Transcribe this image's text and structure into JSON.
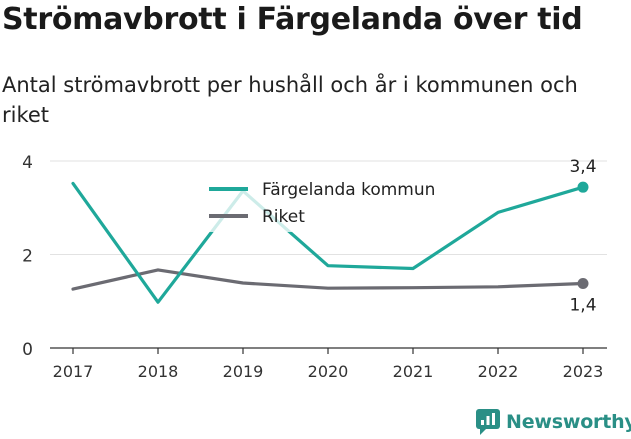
{
  "title": "Strömavbrott i Färgelanda över tid",
  "subtitle": "Antal strömavbrott per hushåll och år i kommunen och riket",
  "brand": {
    "name": "Newsworthy",
    "icon": "newsworthy-logo-icon"
  },
  "colors": {
    "fargelanda": "#1fa89a",
    "riket": "#6b6b72",
    "grid": "#e2e2e2",
    "axis": "#333333"
  },
  "chart_data": {
    "type": "line",
    "title": "Strömavbrott i Färgelanda över tid",
    "subtitle": "Antal strömavbrott per hushåll och år i kommunen och riket",
    "categories": [
      "2017",
      "2018",
      "2019",
      "2020",
      "2021",
      "2022",
      "2023"
    ],
    "y_ticks": [
      "0",
      "2",
      "4"
    ],
    "ylim": [
      0,
      4
    ],
    "grid": true,
    "legend_position": "top-center",
    "series": [
      {
        "name": "Färgelanda kommun",
        "color": "#1fa89a",
        "values": [
          3.52,
          0.98,
          3.36,
          1.76,
          1.7,
          2.9,
          3.44
        ],
        "end_label": "3,4",
        "end_label_position": "above"
      },
      {
        "name": "Riket",
        "color": "#6b6b72",
        "values": [
          1.26,
          1.67,
          1.39,
          1.28,
          1.29,
          1.31,
          1.38
        ],
        "end_label": "1,4",
        "end_label_position": "below"
      }
    ]
  }
}
